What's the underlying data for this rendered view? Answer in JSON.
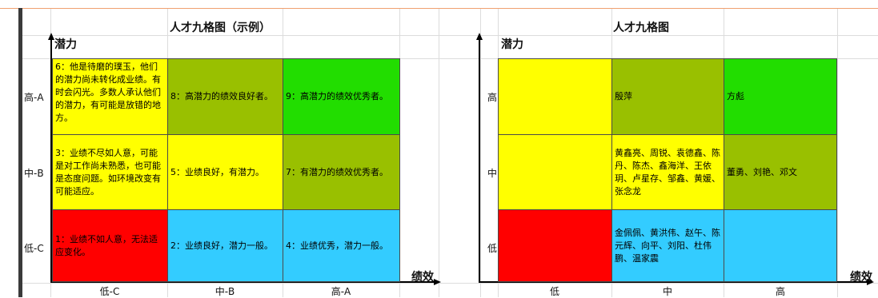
{
  "colors": {
    "yellow": "#ffff00",
    "olive": "#99c000",
    "green": "#22dd00",
    "red": "#ff0000",
    "blue": "#33ccff"
  },
  "left": {
    "title": "人才九格图（示例）",
    "y_axis": "潜力",
    "x_axis": "绩效",
    "rows": [
      "高-A",
      "中-B",
      "低-C"
    ],
    "cols": [
      "低-C",
      "中-B",
      "高-A"
    ],
    "cells": {
      "r1c1": "6：他是待磨的璞玉，他们的潜力尚未转化成业绩。有时会闪光。多数人承认他们的潜力，有可能是放错的地方。",
      "r1c2": "8：高潜力的绩效良好者。",
      "r1c3": "9：高潜力的绩效优秀者。",
      "r2c1": "3：业绩不尽如人意，可能是对工作尚未熟悉，也可能是态度问题。如环境改变有可能适应。",
      "r2c2": "5：业绩良好，有潜力。",
      "r2c3": "7：有潜力的绩效优秀者。",
      "r3c1": "1：业绩不如人意，无法适应变化。",
      "r3c2": "2：业绩良好，潜力一般。",
      "r3c3": "4：业绩优秀，潜力一般。"
    }
  },
  "right": {
    "title": "人才九格图",
    "y_axis": "潜力",
    "x_axis": "绩效",
    "rows": [
      "高",
      "中",
      "低"
    ],
    "cols": [
      "低",
      "中",
      "高"
    ],
    "cells": {
      "r1c1": "",
      "r1c2": "殷萍",
      "r1c3": "方彪",
      "r2c1": "",
      "r2c2": "黄鑫亮、周锐、袁德鑫、陈丹、陈杰、鑫海洋、王依玥、卢星存、邹鑫、黄媛、张念龙",
      "r2c3": "董勇、刘艳、邓文",
      "r3c1": "",
      "r3c2": "金佩佩、黄洪伟、赵午、陈元辉、向平、刘阳、杜伟鹏、温家震",
      "r3c3": ""
    }
  }
}
